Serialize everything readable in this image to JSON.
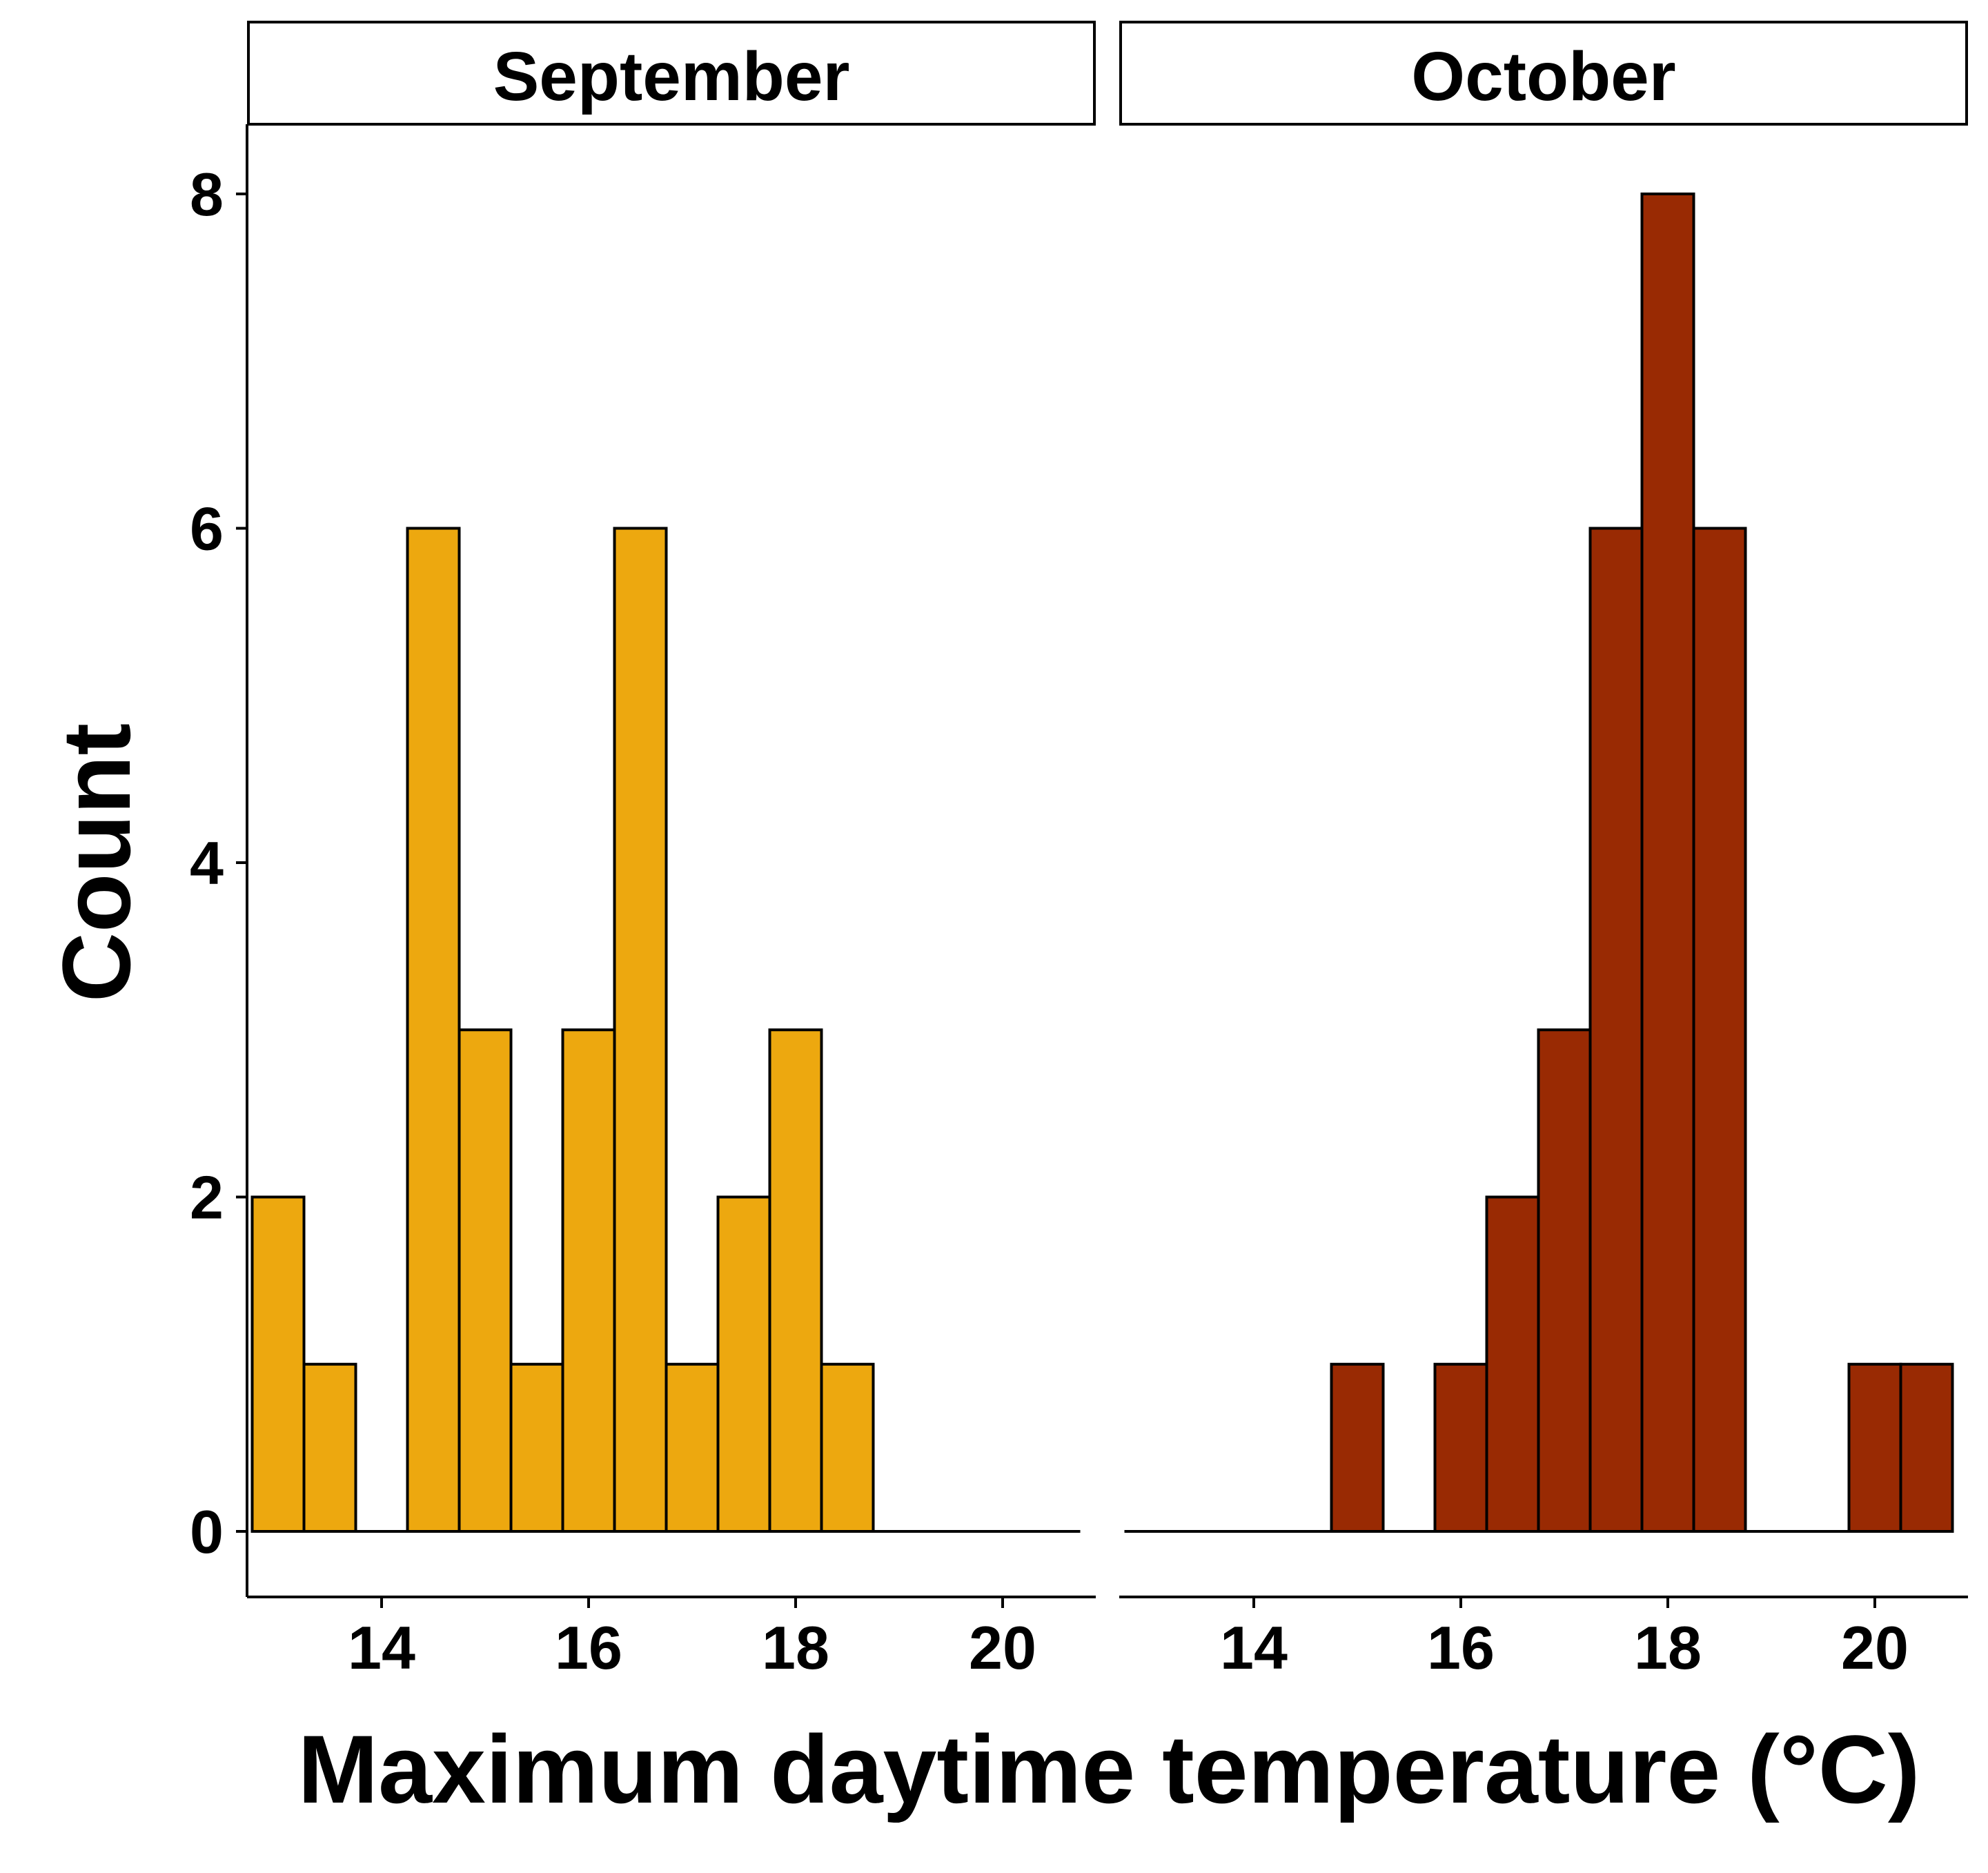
{
  "chart_data": {
    "type": "bar",
    "xlabel": "Maximum daytime temperature (°C)",
    "ylabel": "Count",
    "ylim": [
      -0.45,
      8.45
    ],
    "xlim": [
      12.7,
      20.9
    ],
    "bin_width": 0.5,
    "x_ticks": [
      14,
      16,
      18,
      20
    ],
    "y_ticks": [
      0,
      2,
      4,
      6,
      8
    ],
    "grid": false,
    "legend": "none",
    "panels": [
      {
        "name": "September",
        "color": "#EDA80F",
        "bins": [
          {
            "x": 13.0,
            "count": 2
          },
          {
            "x": 13.5,
            "count": 1
          },
          {
            "x": 14.0,
            "count": 0
          },
          {
            "x": 14.5,
            "count": 6
          },
          {
            "x": 15.0,
            "count": 3
          },
          {
            "x": 15.5,
            "count": 1
          },
          {
            "x": 16.0,
            "count": 3
          },
          {
            "x": 16.5,
            "count": 6
          },
          {
            "x": 17.0,
            "count": 1
          },
          {
            "x": 17.5,
            "count": 2
          },
          {
            "x": 18.0,
            "count": 3
          },
          {
            "x": 18.5,
            "count": 1
          },
          {
            "x": 19.0,
            "count": 0
          },
          {
            "x": 19.5,
            "count": 0
          },
          {
            "x": 20.0,
            "count": 0
          },
          {
            "x": 20.5,
            "count": 0
          }
        ]
      },
      {
        "name": "October",
        "color": "#992A03",
        "bins": [
          {
            "x": 13.0,
            "count": 0
          },
          {
            "x": 13.5,
            "count": 0
          },
          {
            "x": 14.0,
            "count": 0
          },
          {
            "x": 14.5,
            "count": 0
          },
          {
            "x": 15.0,
            "count": 1
          },
          {
            "x": 15.5,
            "count": 0
          },
          {
            "x": 16.0,
            "count": 1
          },
          {
            "x": 16.5,
            "count": 2
          },
          {
            "x": 17.0,
            "count": 3
          },
          {
            "x": 17.5,
            "count": 6
          },
          {
            "x": 18.0,
            "count": 8
          },
          {
            "x": 18.5,
            "count": 6
          },
          {
            "x": 19.0,
            "count": 0
          },
          {
            "x": 19.5,
            "count": 0
          },
          {
            "x": 20.0,
            "count": 1
          },
          {
            "x": 20.5,
            "count": 1
          }
        ]
      }
    ]
  }
}
